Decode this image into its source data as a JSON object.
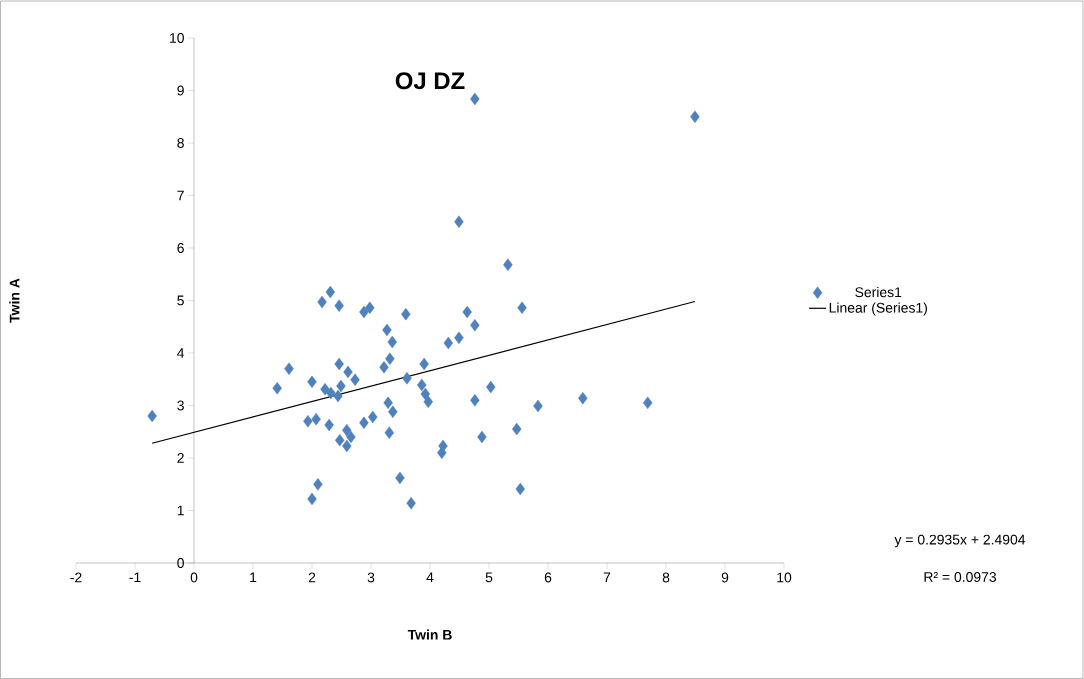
{
  "chart_data": {
    "type": "scatter",
    "title": "OJ DZ",
    "xlabel": "Twin B",
    "ylabel": "Twin A",
    "xlim": [
      -2,
      10
    ],
    "xticks": [
      -2,
      -1,
      0,
      1,
      2,
      3,
      4,
      5,
      6,
      7,
      8,
      9,
      10
    ],
    "ylim": [
      0,
      10
    ],
    "yticks": [
      0,
      1,
      2,
      3,
      4,
      5,
      6,
      7,
      8,
      9,
      10
    ],
    "legend": "right",
    "grid": false,
    "series": [
      {
        "name": "Series1",
        "marker": "diamond",
        "color": "#4f81bd",
        "x": [
          -0.71,
          1.41,
          1.61,
          2.0,
          2.0,
          2.1,
          1.93,
          2.07,
          2.17,
          2.31,
          2.46,
          2.22,
          2.32,
          2.29,
          2.47,
          2.59,
          2.66,
          2.59,
          2.44,
          2.49,
          2.46,
          2.61,
          2.73,
          2.88,
          3.03,
          2.88,
          2.98,
          3.27,
          3.36,
          3.22,
          3.32,
          3.29,
          3.37,
          3.31,
          3.49,
          3.68,
          3.59,
          3.61,
          3.9,
          3.86,
          3.92,
          3.97,
          4.76,
          8.49,
          4.49,
          5.32,
          5.56,
          4.63,
          4.76,
          4.49,
          4.31,
          5.03,
          4.76,
          5.83,
          6.59,
          7.69,
          5.47,
          4.88,
          4.22,
          4.2,
          5.53
        ],
        "values": [
          2.8,
          3.33,
          3.7,
          3.45,
          1.22,
          1.5,
          2.7,
          2.74,
          4.97,
          5.16,
          4.9,
          3.31,
          3.24,
          2.63,
          2.34,
          2.23,
          2.4,
          2.53,
          3.18,
          3.37,
          3.79,
          3.64,
          3.49,
          2.67,
          2.78,
          4.78,
          4.86,
          4.44,
          4.21,
          3.73,
          3.89,
          3.05,
          2.88,
          2.48,
          1.62,
          1.14,
          4.74,
          3.52,
          3.79,
          3.39,
          3.22,
          3.07,
          8.84,
          8.5,
          6.5,
          5.68,
          4.86,
          4.78,
          4.53,
          4.29,
          4.19,
          3.35,
          3.1,
          2.99,
          3.14,
          3.05,
          2.55,
          2.4,
          2.23,
          2.1,
          1.41
        ]
      },
      {
        "name": "Linear (Series1)",
        "type": "line",
        "marker": "none",
        "line_style": "solid",
        "color": "#000000",
        "x": [
          -0.71,
          8.49
        ],
        "values": [
          2.28,
          4.98
        ]
      }
    ],
    "annotations": [
      "y = 0.2935x + 2.4904",
      "R² = 0.0973"
    ]
  }
}
